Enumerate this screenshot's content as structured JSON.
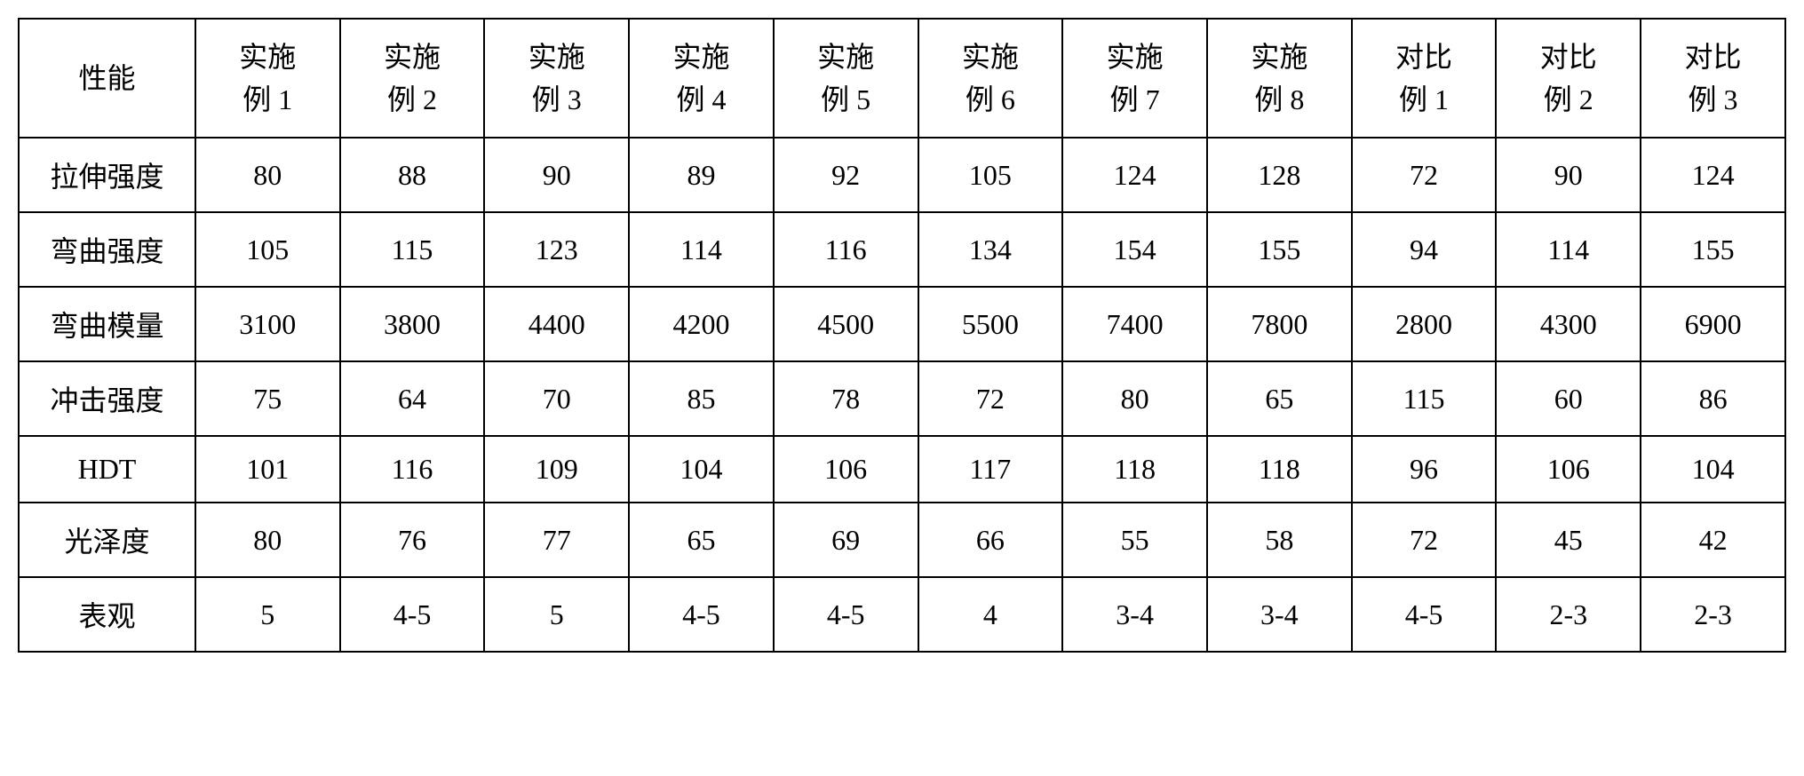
{
  "table": {
    "type": "table",
    "background_color": "#ffffff",
    "border_color": "#000000",
    "border_width": 2,
    "text_color": "#000000",
    "font_size": 32,
    "font_family": "SimSun, 宋体, serif",
    "cell_padding": "18px 8px",
    "columns": [
      {
        "key": "property",
        "header_line1": "性能",
        "header_line2": "",
        "width": "10%"
      },
      {
        "key": "ex1",
        "header_line1": "实施",
        "header_line2": "例 1",
        "width": "8.18%"
      },
      {
        "key": "ex2",
        "header_line1": "实施",
        "header_line2": "例 2",
        "width": "8.18%"
      },
      {
        "key": "ex3",
        "header_line1": "实施",
        "header_line2": "例 3",
        "width": "8.18%"
      },
      {
        "key": "ex4",
        "header_line1": "实施",
        "header_line2": "例 4",
        "width": "8.18%"
      },
      {
        "key": "ex5",
        "header_line1": "实施",
        "header_line2": "例 5",
        "width": "8.18%"
      },
      {
        "key": "ex6",
        "header_line1": "实施",
        "header_line2": "例 6",
        "width": "8.18%"
      },
      {
        "key": "ex7",
        "header_line1": "实施",
        "header_line2": "例 7",
        "width": "8.18%"
      },
      {
        "key": "ex8",
        "header_line1": "实施",
        "header_line2": "例 8",
        "width": "8.18%"
      },
      {
        "key": "cmp1",
        "header_line1": "对比",
        "header_line2": "例 1",
        "width": "8.18%"
      },
      {
        "key": "cmp2",
        "header_line1": "对比",
        "header_line2": "例 2",
        "width": "8.18%"
      },
      {
        "key": "cmp3",
        "header_line1": "对比",
        "header_line2": "例 3",
        "width": "8.18%"
      }
    ],
    "rows": [
      {
        "label": "拉伸强度",
        "values": [
          "80",
          "88",
          "90",
          "89",
          "92",
          "105",
          "124",
          "128",
          "72",
          "90",
          "124"
        ]
      },
      {
        "label": "弯曲强度",
        "values": [
          "105",
          "115",
          "123",
          "114",
          "116",
          "134",
          "154",
          "155",
          "94",
          "114",
          "155"
        ]
      },
      {
        "label": "弯曲模量",
        "values": [
          "3100",
          "3800",
          "4400",
          "4200",
          "4500",
          "5500",
          "7400",
          "7800",
          "2800",
          "4300",
          "6900"
        ]
      },
      {
        "label": "冲击强度",
        "values": [
          "75",
          "64",
          "70",
          "85",
          "78",
          "72",
          "80",
          "65",
          "115",
          "60",
          "86"
        ]
      },
      {
        "label": "HDT",
        "values": [
          "101",
          "116",
          "109",
          "104",
          "106",
          "117",
          "118",
          "118",
          "96",
          "106",
          "104"
        ]
      },
      {
        "label": "光泽度",
        "values": [
          "80",
          "76",
          "77",
          "65",
          "69",
          "66",
          "55",
          "58",
          "72",
          "45",
          "42"
        ]
      },
      {
        "label": "表观",
        "values": [
          "5",
          "4-5",
          "5",
          "4-5",
          "4-5",
          "4",
          "3-4",
          "3-4",
          "4-5",
          "2-3",
          "2-3"
        ]
      }
    ]
  }
}
